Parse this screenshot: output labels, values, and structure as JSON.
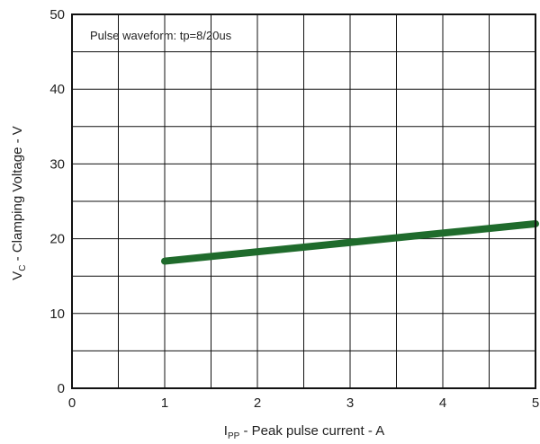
{
  "chart_data": {
    "type": "line",
    "annotation": "Pulse waveform: tp=8/20us",
    "xlabel": {
      "main": "I",
      "sub": "PP",
      "rest": " - Peak pulse current - A"
    },
    "ylabel": {
      "main": "V",
      "sub": "C",
      "rest": " - Clamping Voltage - V"
    },
    "xlim": [
      0,
      5
    ],
    "ylim": [
      0,
      50
    ],
    "x_ticks": [
      "0",
      "1",
      "2",
      "3",
      "4",
      "5"
    ],
    "y_ticks": [
      "0",
      "10",
      "20",
      "30",
      "40",
      "50"
    ],
    "x_minor_step": 0.5,
    "y_minor_step": 5,
    "grid": true,
    "series": [
      {
        "color": "#1f6b2c",
        "x": [
          1,
          5
        ],
        "y": [
          17,
          22
        ]
      }
    ]
  }
}
